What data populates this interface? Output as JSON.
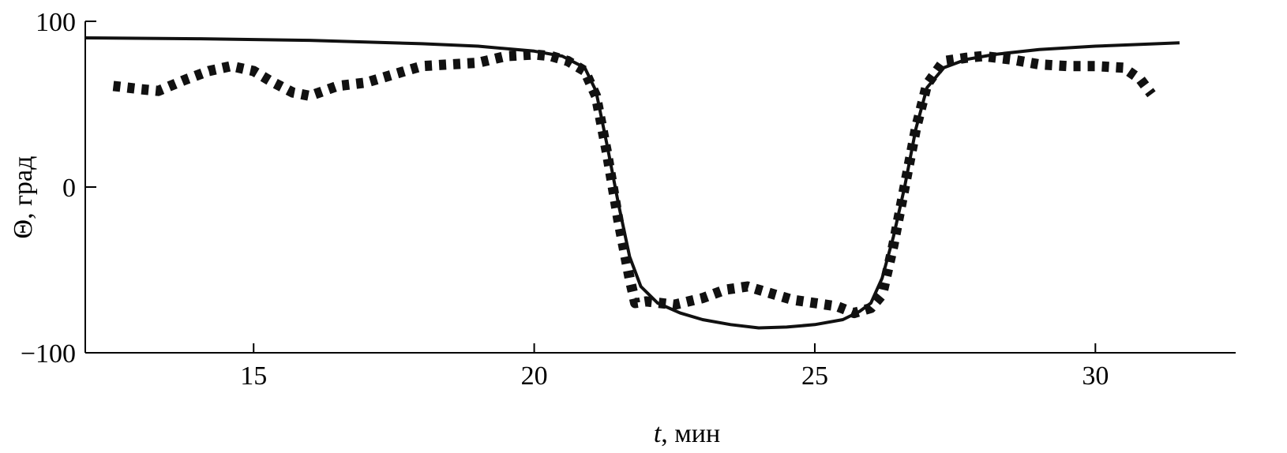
{
  "chart_data": {
    "type": "line",
    "title": "",
    "xlabel_italic": "t",
    "xlabel_rest": ", мин",
    "ylabel": "Θ, град",
    "xlim": [
      12,
      32.5
    ],
    "ylim": [
      -100,
      100
    ],
    "x_ticks": [
      15,
      20,
      25,
      30
    ],
    "x_tick_labels": [
      "15",
      "20",
      "25",
      "30"
    ],
    "y_ticks": [
      -100,
      0,
      100
    ],
    "y_tick_labels": [
      "−100",
      "0",
      "100"
    ],
    "grid": false,
    "legend": "none",
    "series": [
      {
        "style": "solid",
        "x": [
          12,
          14,
          16,
          18,
          19,
          20,
          20.5,
          20.9,
          21.1,
          21.3,
          21.5,
          21.7,
          21.9,
          22.2,
          22.6,
          23.0,
          23.5,
          24.0,
          24.5,
          25.0,
          25.5,
          25.8,
          26.0,
          26.2,
          26.4,
          26.6,
          26.8,
          27.0,
          27.3,
          27.7,
          28.2,
          29.0,
          30.0,
          31.5
        ],
        "y": [
          90,
          89.5,
          88.5,
          86.5,
          85,
          82,
          79,
          72,
          58,
          25,
          -10,
          -42,
          -60,
          -70,
          -76,
          -80,
          -83,
          -85,
          -84.5,
          -83,
          -80,
          -75,
          -70,
          -55,
          -30,
          0,
          35,
          60,
          72,
          77,
          80,
          83,
          85,
          87
        ]
      },
      {
        "style": "dotted",
        "x": [
          12.5,
          13.0,
          13.3,
          13.8,
          14.2,
          14.6,
          15.0,
          15.3,
          15.7,
          16.0,
          16.5,
          17.0,
          17.5,
          18.0,
          18.5,
          19.0,
          19.5,
          20.0,
          20.3,
          20.6,
          20.9,
          21.1,
          21.3,
          21.5,
          21.7,
          21.8,
          22.0,
          22.5,
          23.0,
          23.4,
          23.8,
          24.2,
          24.6,
          25.0,
          25.4,
          25.7,
          26.0,
          26.2,
          26.4,
          26.6,
          26.8,
          27.0,
          27.3,
          27.7,
          28.0,
          28.5,
          29.0,
          29.5,
          30.0,
          30.5,
          30.8,
          31.0
        ],
        "y": [
          61,
          59,
          58,
          65,
          70,
          73,
          70,
          64,
          57,
          55,
          61,
          63,
          68,
          73,
          74,
          75,
          79,
          80,
          79,
          76,
          70,
          55,
          20,
          -20,
          -55,
          -70,
          -69,
          -71,
          -67,
          -62,
          -60,
          -64,
          -68,
          -70,
          -72,
          -76,
          -73,
          -65,
          -35,
          0,
          35,
          62,
          76,
          78,
          79,
          77,
          74,
          73,
          73,
          72,
          65,
          56
        ]
      }
    ]
  }
}
